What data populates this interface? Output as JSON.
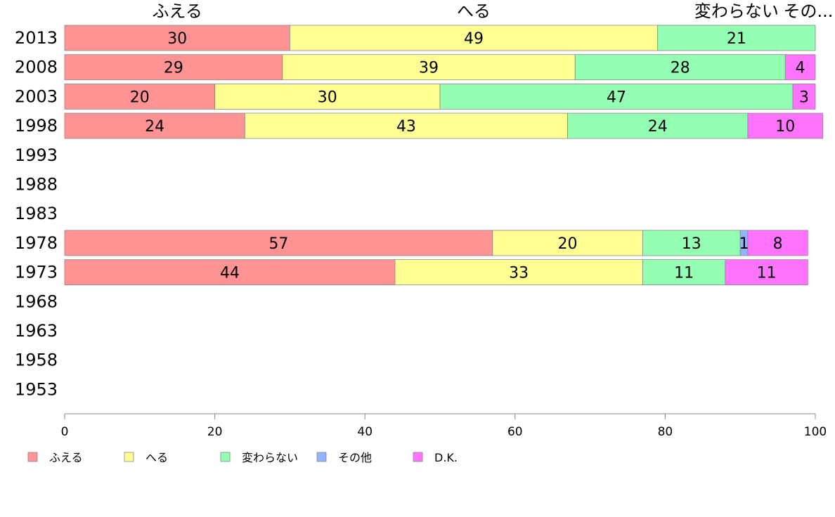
{
  "chart_data": {
    "type": "bar",
    "orientation": "horizontal",
    "stacked": true,
    "categories": [
      "2013",
      "2008",
      "2003",
      "1998",
      "1993",
      "1988",
      "1983",
      "1978",
      "1973",
      "1968",
      "1963",
      "1958",
      "1953"
    ],
    "series": [
      {
        "name": "ふえる",
        "color": "#ff9393",
        "values": [
          30,
          29,
          20,
          24,
          null,
          null,
          null,
          57,
          44,
          null,
          null,
          null,
          null
        ]
      },
      {
        "name": "へる",
        "color": "#ffff93",
        "values": [
          49,
          39,
          30,
          43,
          null,
          null,
          null,
          20,
          33,
          null,
          null,
          null,
          null
        ]
      },
      {
        "name": "変わらない",
        "color": "#93ffb3",
        "values": [
          21,
          28,
          47,
          24,
          null,
          null,
          null,
          13,
          11,
          null,
          null,
          null,
          null
        ]
      },
      {
        "name": "その他",
        "color": "#93b3ff",
        "values": [
          0,
          0,
          0,
          0,
          null,
          null,
          null,
          1,
          0,
          null,
          null,
          null,
          null
        ]
      },
      {
        "name": "D.K.",
        "color": "#ff73ff",
        "values": [
          0,
          4,
          3,
          10,
          null,
          null,
          null,
          8,
          11,
          null,
          null,
          null,
          null
        ]
      }
    ],
    "top_labels": [
      "ふえる",
      "へる",
      "変わらない",
      "その..."
    ],
    "xlim": [
      0,
      100
    ],
    "xticks": [
      0,
      20,
      40,
      60,
      80,
      100
    ],
    "legend": {
      "position": "bottom-left",
      "entries": [
        "ふえる",
        "へる",
        "変わらない",
        "その他",
        "D.K."
      ]
    },
    "grid": false
  }
}
